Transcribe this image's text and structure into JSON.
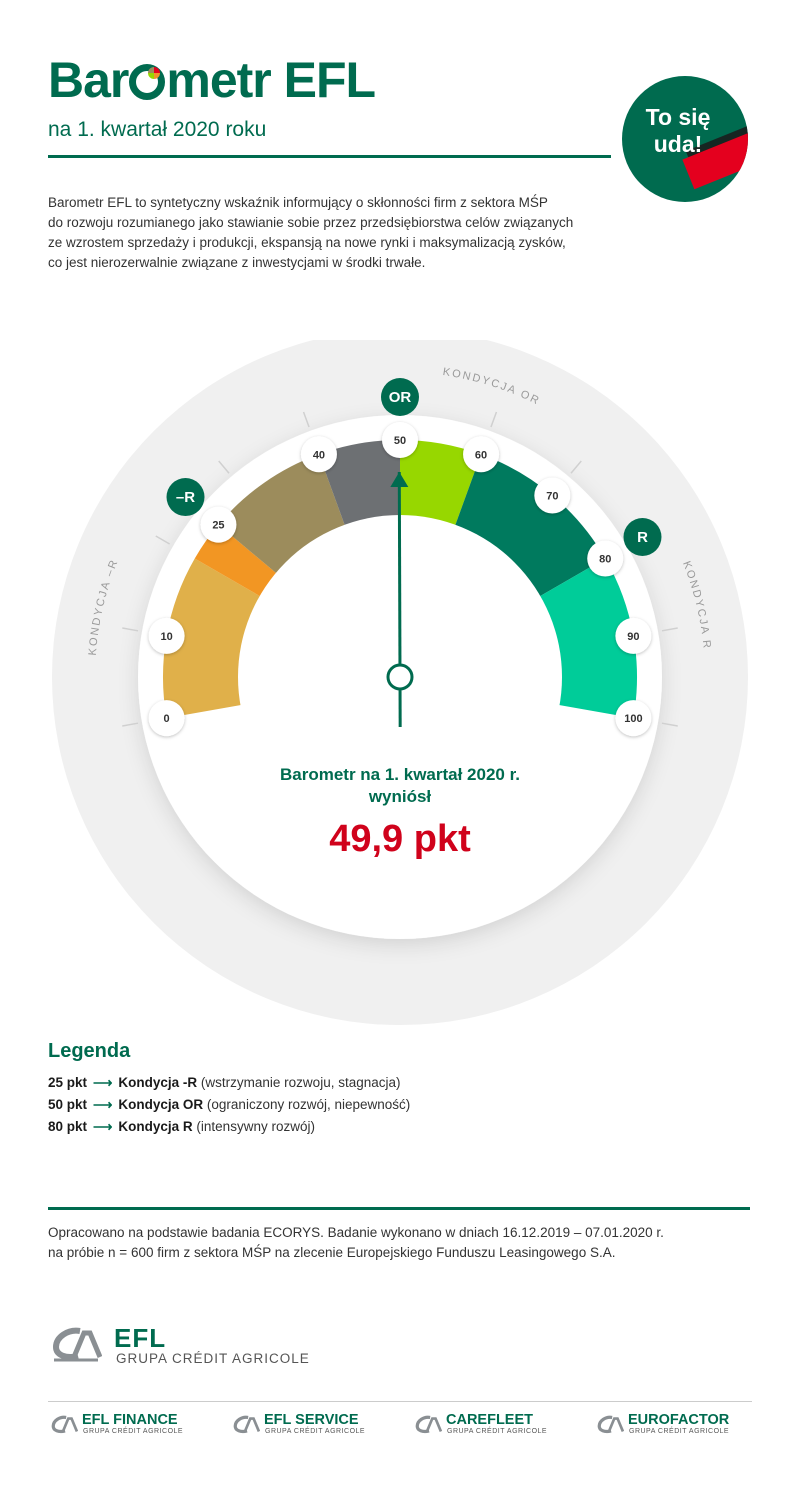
{
  "header": {
    "title_left": "Bar",
    "title_right": "metr EFL",
    "subtitle": "na 1. kwartał 2020 roku",
    "badge": "To się\nuda!"
  },
  "intro": "Barometr EFL to syntetyczny wskaźnik informujący o skłonności firm z sektora MŚP\ndo rozwoju rozumianego jako stawianie sobie przez przedsiębiorstwa celów związanych\nze wzrostem sprzedaży i produkcji, ekspansją na nowe rynki i maksymalizacją zysków,\nco jest nierozerwalnie związane z inwestycjami w środki trwałe.",
  "gauge": {
    "min": 0,
    "max": 100,
    "value": 49.9,
    "ticks": [
      "0",
      "10",
      "25",
      "40",
      "50",
      "60",
      "70",
      "80",
      "90",
      "100"
    ],
    "tick_values": [
      0,
      10,
      25,
      40,
      50,
      60,
      70,
      80,
      90,
      100
    ],
    "segments": [
      {
        "from": 0,
        "to": 20,
        "color": "#e0b04a"
      },
      {
        "from": 20,
        "to": 25,
        "color": "#f29623"
      },
      {
        "from": 25,
        "to": 40,
        "color": "#9c8c5c"
      },
      {
        "from": 40,
        "to": 50,
        "color": "#6d7073"
      },
      {
        "from": 50,
        "to": 60,
        "color": "#97d700"
      },
      {
        "from": 60,
        "to": 80,
        "color": "#007a5e"
      },
      {
        "from": 80,
        "to": 100,
        "color": "#00cc99"
      }
    ],
    "markers": [
      {
        "value": 25,
        "badge": "–R",
        "label": "KONDYCJA –R"
      },
      {
        "value": 50,
        "badge": "OR",
        "label": "KONDYCJA OR"
      },
      {
        "value": 80,
        "badge": "R",
        "label": "KONDYCJA R"
      }
    ]
  },
  "result": {
    "label": "Barometr na 1. kwartał 2020 r.\nwyniósł",
    "value": "49,9 pkt"
  },
  "legend": {
    "title": "Legenda",
    "rows": [
      {
        "pts": "25 pkt",
        "name": "Kondycja -R",
        "desc": "(wstrzymanie rozwoju, stagnacja)"
      },
      {
        "pts": "50 pkt",
        "name": "Kondycja OR",
        "desc": "(ograniczony rozwój, niepewność)"
      },
      {
        "pts": "80 pkt",
        "name": "Kondycja R",
        "desc": "(intensywny rozwój)"
      }
    ]
  },
  "footnote": "Opracowano na podstawie badania ECORYS. Badanie wykonano w dniach 16.12.2019 – 07.01.2020 r.\nna próbie n = 600 firm z sektora MŚP na zlecenie Europejskiego Funduszu Leasingowego S.A.",
  "logos": {
    "main_name": "EFL",
    "main_sub": "GRUPA CRÉDIT AGRICOLE",
    "subs": [
      {
        "name": "EFL FINANCE",
        "sub": "GRUPA CRÉDIT AGRICOLE"
      },
      {
        "name": "EFL SERVICE",
        "sub": "GRUPA CRÉDIT AGRICOLE"
      },
      {
        "name": "CAREFLEET",
        "sub": "GRUPA CRÉDIT AGRICOLE"
      },
      {
        "name": "EUROFACTOR",
        "sub": "GRUPA CRÉDIT AGRICOLE"
      }
    ]
  },
  "colors": {
    "brand": "#006b4f",
    "accent_red": "#d0021b",
    "gauge_bg": "#f0f0f0"
  }
}
